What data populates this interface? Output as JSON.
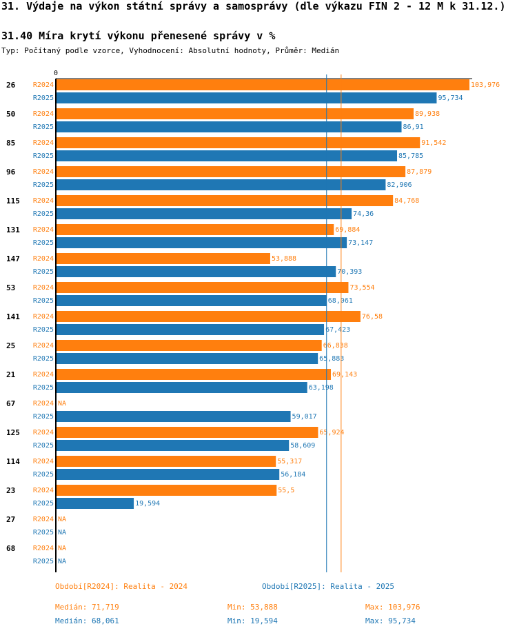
{
  "header": {
    "title": "31. Výdaje na výkon státní správy a samosprávy (dle výkazu FIN 2 - 12 M k 31.12.)",
    "subtitle": "31.40 Míra krytí výkonu přenesené správy v %",
    "meta": "Typ: Počítaný podle vzorce, Vyhodnocení: Absolutní hodnoty, Průměr: Medián"
  },
  "colors": {
    "r2024": "#ff7f0e",
    "r2025": "#1f77b4"
  },
  "chart_data": {
    "type": "bar",
    "orientation": "horizontal",
    "axis_zero_label": "0",
    "xlim": [
      0,
      103.976
    ],
    "categories": [
      "26",
      "50",
      "85",
      "96",
      "115",
      "131",
      "147",
      "53",
      "141",
      "25",
      "21",
      "67",
      "125",
      "114",
      "23",
      "27",
      "68"
    ],
    "series": [
      {
        "name": "R2024",
        "values": [
          103.976,
          89.938,
          91.542,
          87.879,
          84.768,
          69.884,
          53.888,
          73.554,
          76.58,
          66.838,
          69.143,
          null,
          65.924,
          55.317,
          55.5,
          null,
          null
        ],
        "labels": [
          "103,976",
          "89,938",
          "91,542",
          "87,879",
          "84,768",
          "69,884",
          "53,888",
          "73,554",
          "76,58",
          "66,838",
          "69,143",
          "NA",
          "65,924",
          "55,317",
          "55,5",
          "NA",
          "NA"
        ]
      },
      {
        "name": "R2025",
        "values": [
          95.734,
          86.91,
          85.785,
          82.906,
          74.36,
          73.147,
          70.393,
          68.061,
          67.423,
          65.883,
          63.198,
          59.017,
          58.609,
          56.184,
          19.594,
          null,
          null
        ],
        "labels": [
          "95,734",
          "86,91",
          "85,785",
          "82,906",
          "74,36",
          "73,147",
          "70,393",
          "68,061",
          "67,423",
          "65,883",
          "63,198",
          "59,017",
          "58,609",
          "56,184",
          "19,594",
          "NA",
          "NA"
        ]
      }
    ],
    "median_lines": [
      {
        "series": "R2024",
        "value": 71.719
      },
      {
        "series": "R2025",
        "value": 68.061
      }
    ]
  },
  "legend": {
    "r2024": "Období[R2024]: Realita - 2024",
    "r2025": "Období[R2025]: Realita - 2025"
  },
  "stats": {
    "r2024": {
      "median": "Medián: 71,719",
      "min": "Min: 53,888",
      "max": "Max: 103,976"
    },
    "r2025": {
      "median": "Medián: 68,061",
      "min": "Min: 19,594",
      "max": "Max: 95,734"
    }
  }
}
